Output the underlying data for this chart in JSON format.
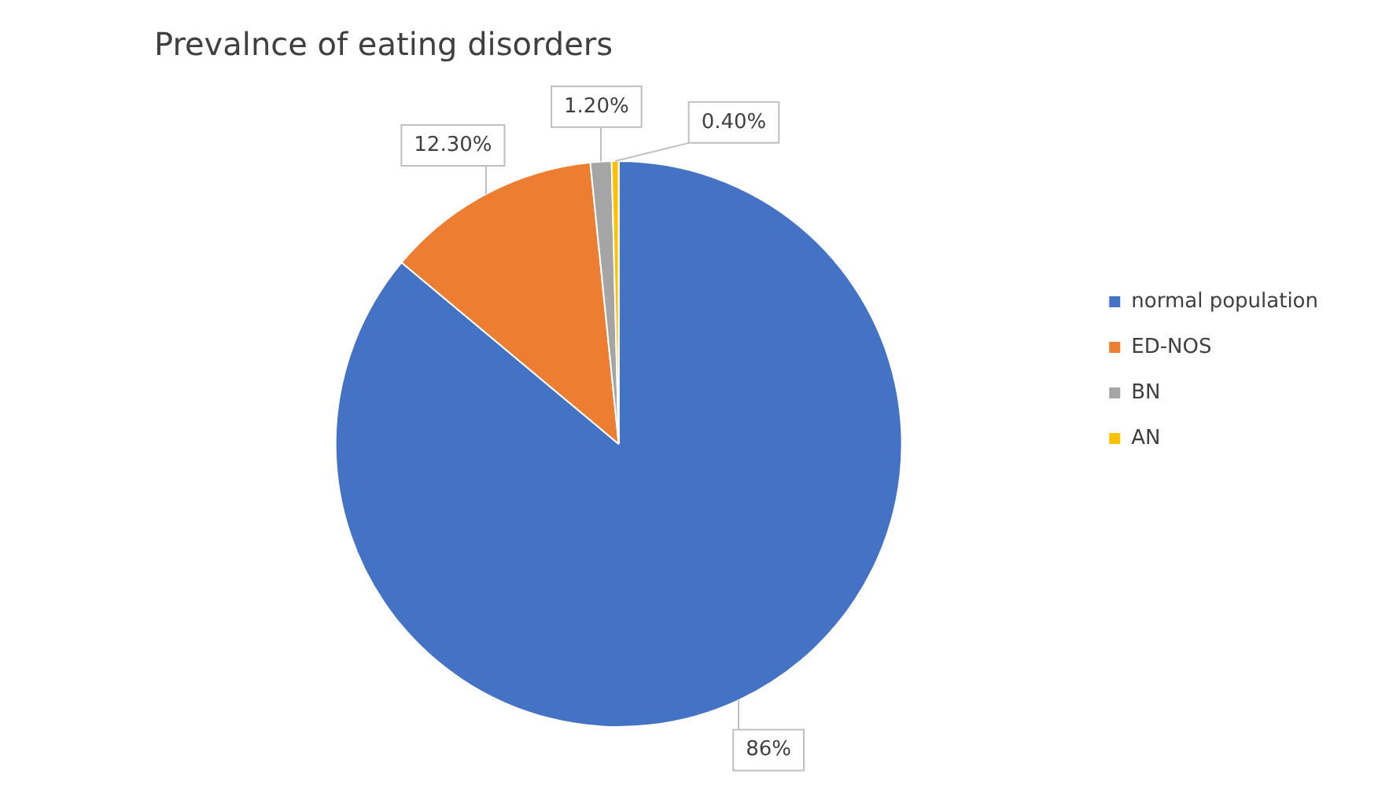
{
  "chart_data": {
    "type": "pie",
    "title": "Prevalnce of eating disorders",
    "categories": [
      "normal population",
      "ED-NOS",
      "BN",
      "AN"
    ],
    "values": [
      86,
      12.3,
      1.2,
      0.4
    ],
    "colors": [
      "#4472c4",
      "#ed7d31",
      "#a5a5a5",
      "#ffc000"
    ],
    "value_labels": [
      "86%",
      "12.30%",
      "1.20%",
      "0.40%"
    ],
    "legend": "right"
  }
}
